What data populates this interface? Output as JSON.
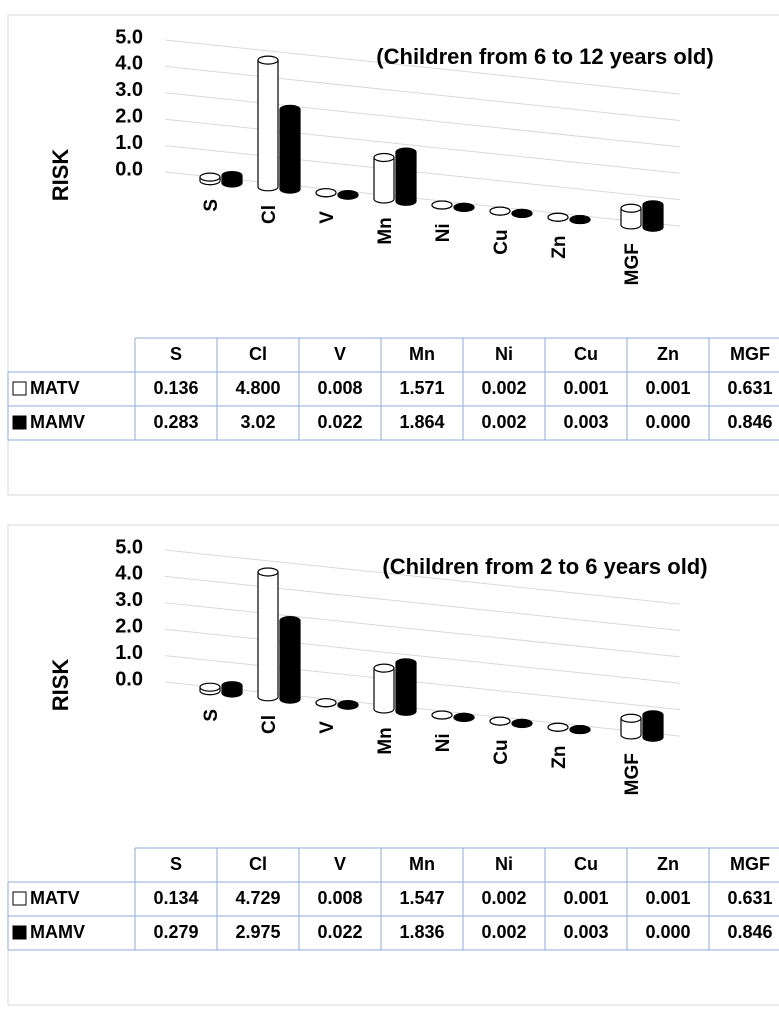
{
  "chart_data": [
    {
      "type": "bar",
      "title": "(Children from 6 to 12 years old)",
      "y_label": "RISK",
      "categories": [
        "S",
        "Cl",
        "V",
        "Mn",
        "Ni",
        "Cu",
        "Zn",
        "MGF"
      ],
      "series": [
        {
          "name": "MATV",
          "color": "#ffffff",
          "values": [
            0.136,
            4.8,
            0.008,
            1.571,
            0.002,
            0.001,
            0.001,
            0.631
          ],
          "value_labels": [
            "0.136",
            "4.800",
            "0.008",
            "1.571",
            "0.002",
            "0.001",
            "0.001",
            "0.631"
          ]
        },
        {
          "name": "MAMV",
          "color": "#000000",
          "values": [
            0.283,
            3.02,
            0.022,
            1.864,
            0.002,
            0.003,
            0.0,
            0.846
          ],
          "value_labels": [
            "0.283",
            "3.02",
            "0.022",
            "1.864",
            "0.002",
            "0.003",
            "0.000",
            "0.846"
          ]
        }
      ],
      "ylim": [
        0,
        5
      ],
      "yticks": [
        {
          "value": 0,
          "label": "0.0"
        },
        {
          "value": 1,
          "label": "1.0"
        },
        {
          "value": 2,
          "label": "2.0"
        },
        {
          "value": 3,
          "label": "3.0"
        },
        {
          "value": 4,
          "label": "4.0"
        },
        {
          "value": 5,
          "label": "5.0"
        }
      ],
      "grid": true
    },
    {
      "type": "bar",
      "title": "(Children from 2 to 6 years old)",
      "y_label": "RISK",
      "categories": [
        "S",
        "Cl",
        "V",
        "Mn",
        "Ni",
        "Cu",
        "Zn",
        "MGF"
      ],
      "series": [
        {
          "name": "MATV",
          "color": "#ffffff",
          "values": [
            0.134,
            4.729,
            0.008,
            1.547,
            0.002,
            0.001,
            0.001,
            0.631
          ],
          "value_labels": [
            "0.134",
            "4.729",
            "0.008",
            "1.547",
            "0.002",
            "0.001",
            "0.001",
            "0.631"
          ]
        },
        {
          "name": "MAMV",
          "color": "#000000",
          "values": [
            0.279,
            2.975,
            0.022,
            1.836,
            0.002,
            0.003,
            0.0,
            0.846
          ],
          "value_labels": [
            "0.279",
            "2.975",
            "0.022",
            "1.836",
            "0.002",
            "0.003",
            "0.000",
            "0.846"
          ]
        }
      ],
      "ylim": [
        0,
        5
      ],
      "yticks": [
        {
          "value": 0,
          "label": "0.0"
        },
        {
          "value": 1,
          "label": "1.0"
        },
        {
          "value": 2,
          "label": "2.0"
        },
        {
          "value": 3,
          "label": "3.0"
        },
        {
          "value": 4,
          "label": "4.0"
        },
        {
          "value": 5,
          "label": "5.0"
        }
      ],
      "grid": true
    }
  ]
}
